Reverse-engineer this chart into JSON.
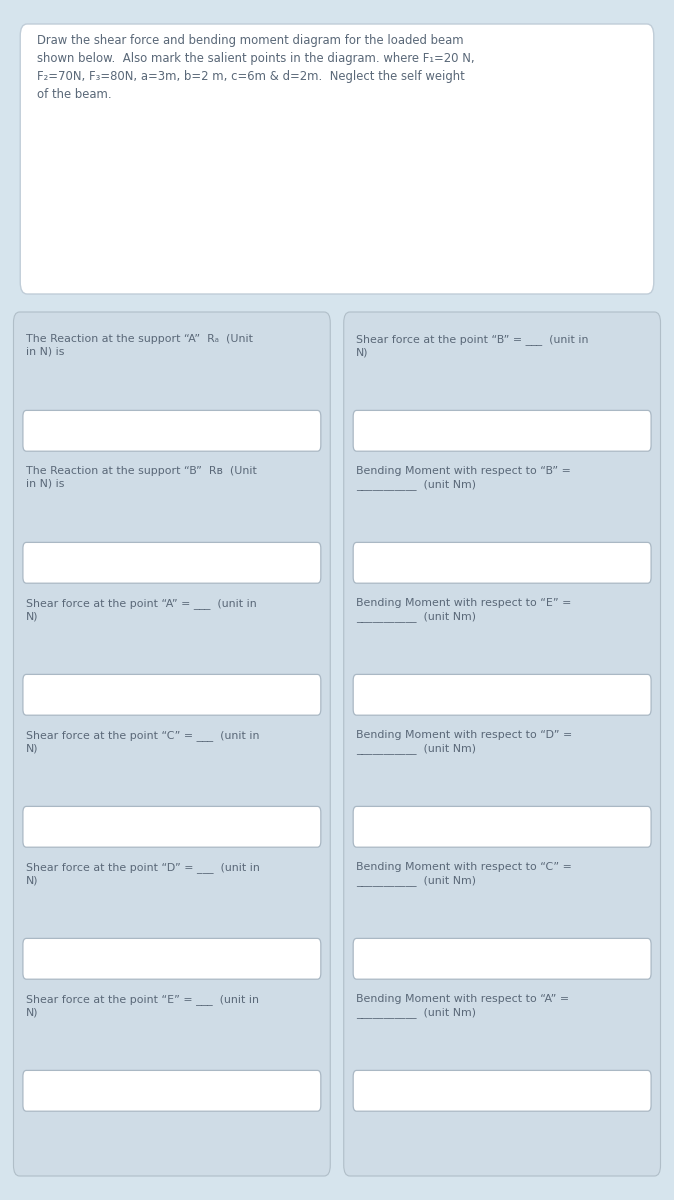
{
  "bg_color": "#d6e4ed",
  "card_bg": "#ffffff",
  "card_border": "#c0cdd8",
  "text_color": "#5a6878",
  "title_text": "Draw the shear force and bending moment diagram for the loaded beam\nshown below.  Also mark the salient points in the diagram. where F₁=20 N,\nF₂=70N, F₃=80N, a=3m, b=2 m, c=6m & d=2m.  Neglect the self weight\nof the beam.",
  "beam_fill": "#b8bfc8",
  "beam_top": "#888f98",
  "left_labels": [
    "The Reaction at the support “A”  Rₐ  (Unit\nin N) is",
    "The Reaction at the support “B”  Rʙ  (Unit\nin N) is",
    "Shear force at the point “A” = ___  (unit in\nN)",
    "Shear force at the point “C” = ___  (unit in\nN)",
    "Shear force at the point “D” = ___  (unit in\nN)",
    "Shear force at the point “E” = ___  (unit in\nN)"
  ],
  "right_labels": [
    "Shear force at the point “B” = ___  (unit in\nN)",
    "Bending Moment with respect to “B” =\n___________  (unit Nm)",
    "Bending Moment with respect to “E” =\n___________  (unit Nm)",
    "Bending Moment with respect to “D” =\n___________  (unit Nm)",
    "Bending Moment with respect to “C” =\n___________  (unit Nm)",
    "Bending Moment with respect to “A” =\n___________  (unit Nm)"
  ],
  "form_col_bg": "#cfdce6",
  "input_bg": "#ffffff",
  "input_border": "#aab8c4"
}
